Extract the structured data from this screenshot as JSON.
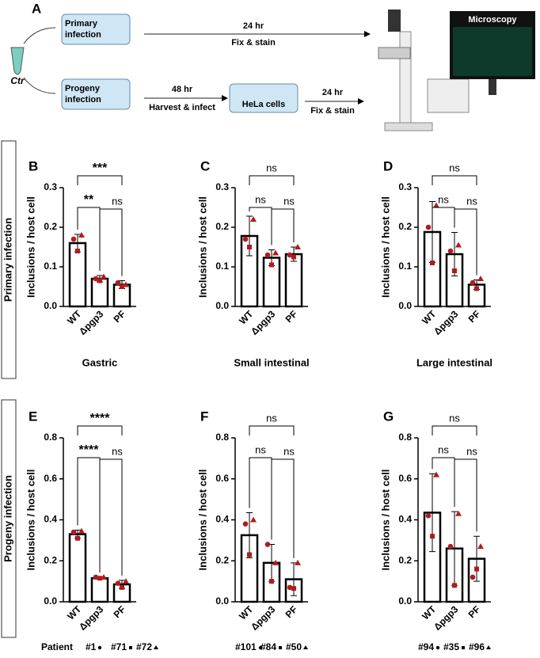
{
  "schematic": {
    "panel": "A",
    "primary_line1": "Primary",
    "primary_line2": "infection",
    "progeny_line1": "Progeny",
    "progeny_line2": "infection",
    "tube": "Ctr",
    "top_time": "24 hr",
    "top_step": "Fix & stain",
    "mid_time": "48 hr",
    "mid_step": "Harvest & infect",
    "cells": "HeLa cells",
    "bottom_time": "24 hr",
    "bottom_step": "Fix & stain",
    "microscopy": "Microscopy"
  },
  "row_labels": [
    "Primary infection",
    "Progeny infection"
  ],
  "patients": {
    "label": "Patient",
    "groups": [
      [
        "#1",
        "#71",
        "#72"
      ],
      [
        "#101",
        "#84",
        "#50"
      ],
      [
        "#94",
        "#35",
        "#96"
      ]
    ]
  },
  "chart_data": [
    {
      "type": "bar",
      "panel": "B",
      "ylabel": "Inclusions / host cell",
      "xlabel": "Gastric",
      "categories": [
        "WT",
        "Δpgp3",
        "PF"
      ],
      "values": [
        0.16,
        0.07,
        0.055
      ],
      "errors": [
        0.022,
        0.008,
        0.01
      ],
      "points": [
        [
          0.17,
          0.14,
          0.18
        ],
        [
          0.07,
          0.065,
          0.075
        ],
        [
          0.06,
          0.05,
          0.055
        ]
      ],
      "significance": [
        "**",
        "ns",
        "***"
      ],
      "ylim": [
        0,
        0.3
      ],
      "yticks": [
        {
          "value": 0,
          "label": "0.0"
        },
        0.1,
        0.2,
        0.3
      ],
      "color": "#000000",
      "point_color": "#b01c1c"
    },
    {
      "type": "bar",
      "panel": "C",
      "ylabel": "Inclusions / host cell",
      "xlabel": "Small intestinal",
      "categories": [
        "WT",
        "Δpgp3",
        "PF"
      ],
      "values": [
        0.178,
        0.123,
        0.132
      ],
      "errors": [
        0.05,
        0.02,
        0.018
      ],
      "points": [
        [
          0.17,
          0.15,
          0.22
        ],
        [
          0.13,
          0.105,
          0.135
        ],
        [
          0.13,
          0.125,
          0.15
        ]
      ],
      "significance": [
        "ns",
        "ns",
        "ns"
      ],
      "ylim": [
        0,
        0.3
      ],
      "yticks": [
        {
          "value": 0,
          "label": "0.0"
        },
        0.1,
        0.2,
        0.3
      ],
      "color": "#000000",
      "point_color": "#b01c1c"
    },
    {
      "type": "bar",
      "panel": "D",
      "ylabel": "Inclusions / host cell",
      "xlabel": "Large intestinal",
      "categories": [
        "WT",
        "Δpgp3",
        "PF"
      ],
      "values": [
        0.188,
        0.132,
        0.055
      ],
      "errors": [
        0.077,
        0.055,
        0.012
      ],
      "points": [
        [
          0.2,
          0.11,
          0.255
        ],
        [
          0.14,
          0.09,
          0.155
        ],
        [
          0.06,
          0.045,
          0.07
        ]
      ],
      "significance": [
        "ns",
        "ns",
        "ns"
      ],
      "ylim": [
        0,
        0.3
      ],
      "yticks": [
        {
          "value": 0,
          "label": "0.0"
        },
        0.1,
        0.2,
        0.3
      ],
      "color": "#000000",
      "point_color": "#b01c1c"
    },
    {
      "type": "bar",
      "panel": "E",
      "ylabel": "Inclusions / host cell",
      "xlabel": "Gastric",
      "categories": [
        "WT",
        "Δpgp3",
        "PF"
      ],
      "values": [
        0.33,
        0.115,
        0.085
      ],
      "errors": [
        0.02,
        0.005,
        0.02
      ],
      "points": [
        [
          0.34,
          0.31,
          0.345
        ],
        [
          0.12,
          0.115,
          0.12
        ],
        [
          0.09,
          0.07,
          0.1
        ]
      ],
      "significance": [
        "****",
        "ns",
        "****"
      ],
      "ylim": [
        0,
        0.8
      ],
      "yticks": [
        {
          "value": 0,
          "label": "0.0"
        },
        0.2,
        0.4,
        0.6,
        0.8
      ],
      "color": "#000000",
      "point_color": "#b01c1c"
    },
    {
      "type": "bar",
      "panel": "F",
      "ylabel": "Inclusions / host cell",
      "xlabel": "Small intestinal",
      "categories": [
        "WT",
        "Δpgp3",
        "PF"
      ],
      "values": [
        0.325,
        0.19,
        0.11
      ],
      "errors": [
        0.11,
        0.09,
        0.08
      ],
      "points": [
        [
          0.38,
          0.23,
          0.4
        ],
        [
          0.28,
          0.1,
          0.19
        ],
        [
          0.07,
          0.065,
          0.19
        ]
      ],
      "significance": [
        "ns",
        "ns",
        "ns"
      ],
      "ylim": [
        0,
        0.8
      ],
      "yticks": [
        {
          "value": 0,
          "label": "0.0"
        },
        0.2,
        0.4,
        0.6,
        0.8
      ],
      "color": "#000000",
      "point_color": "#b01c1c"
    },
    {
      "type": "bar",
      "panel": "G",
      "ylabel": "Inclusions / host cell",
      "xlabel": "Large intestinal",
      "categories": [
        "WT",
        "Δpgp3",
        "PF"
      ],
      "values": [
        0.435,
        0.26,
        0.21
      ],
      "errors": [
        0.19,
        0.18,
        0.11
      ],
      "points": [
        [
          0.42,
          0.32,
          0.62
        ],
        [
          0.27,
          0.08,
          0.43
        ],
        [
          0.12,
          0.16,
          0.27
        ]
      ],
      "significance": [
        "ns",
        "ns",
        "ns"
      ],
      "ylim": [
        0,
        0.8
      ],
      "yticks": [
        {
          "value": 0,
          "label": "0.0"
        },
        0.2,
        0.4,
        0.6,
        0.8
      ],
      "color": "#000000",
      "point_color": "#b01c1c"
    }
  ]
}
